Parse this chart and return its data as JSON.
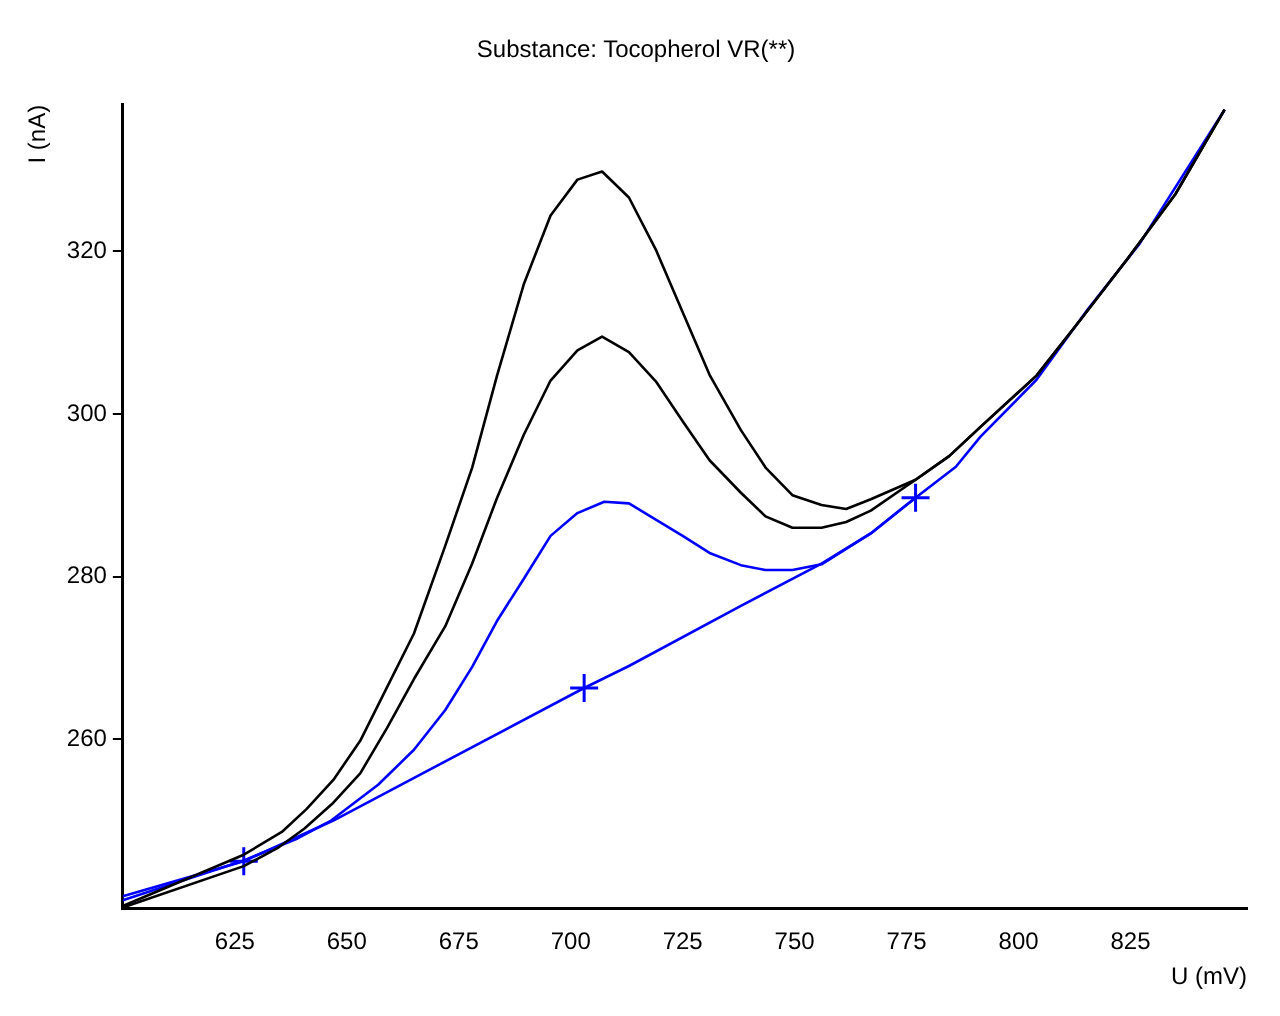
{
  "chart_data": {
    "type": "line",
    "title": "Substance: Tocopherol VR(**)",
    "xlabel": "U (mV)",
    "ylabel": "I (nA)",
    "xlim": [
      600,
      851
    ],
    "xticks": [
      625,
      650,
      675,
      700,
      725,
      750,
      775,
      800,
      825
    ],
    "ylim": [
      239.2,
      338
    ],
    "yticks": [
      260,
      280,
      300,
      320
    ],
    "grid": false,
    "legend": false,
    "marker": "none",
    "line_style": "solid",
    "series": [
      {
        "color": "#000000",
        "x": [
          600,
          627,
          635.5,
          641,
          647,
          653,
          659,
          665,
          672,
          678,
          683.5,
          689.5,
          695.5,
          701.5,
          707,
          713,
          719,
          725,
          731,
          738,
          743.5,
          749.5,
          756,
          761.5,
          767,
          777,
          784.5,
          791.5,
          804,
          814,
          824.5,
          835,
          846
        ],
        "values": [
          239.5,
          245.8,
          248.6,
          251.4,
          255,
          259.8,
          266.4,
          273,
          283.8,
          293.4,
          304.6,
          315.9,
          324.4,
          328.8,
          329.8,
          326.6,
          320.2,
          312.5,
          304.8,
          298,
          293.4,
          290,
          288.8,
          288.3,
          289.5,
          291.9,
          294.8,
          298.4,
          304.7,
          311.7,
          319.2,
          327,
          337.4
        ]
      },
      {
        "color": "#000000",
        "x": [
          600,
          627,
          634.5,
          640.5,
          647,
          653,
          659,
          665,
          672,
          678,
          683.5,
          689.5,
          695.5,
          701.5,
          707,
          713,
          719,
          725,
          731,
          738,
          743.5,
          749.5,
          756,
          761.5,
          767,
          777,
          784.5,
          791.5,
          804,
          814,
          824.5,
          835,
          846
        ],
        "values": [
          239.3,
          244.4,
          246.6,
          249,
          252.2,
          255.8,
          261.4,
          267.4,
          273.9,
          281.6,
          289.6,
          297.4,
          304.1,
          307.8,
          309.5,
          307.6,
          304,
          299.1,
          294.3,
          290.3,
          287.4,
          286,
          286,
          286.7,
          288.1,
          291.9,
          294.8,
          298.4,
          304.7,
          311.7,
          319.2,
          327,
          337.4
        ]
      },
      {
        "color": "#0000ff",
        "x": [
          600,
          627,
          639,
          646.5,
          657,
          665,
          672,
          678,
          683.5,
          689.5,
          695.5,
          701.5,
          707.5,
          713,
          719,
          725,
          731,
          738,
          743.5,
          749.5,
          756,
          767,
          777,
          786,
          791.5,
          804,
          815.5,
          827,
          846
        ],
        "values": [
          240.2,
          245.1,
          247.8,
          250,
          254.4,
          258.7,
          263.6,
          268.9,
          274.5,
          279.7,
          285,
          287.8,
          289.2,
          289,
          287,
          285,
          282.9,
          281.4,
          280.8,
          280.8,
          281.5,
          285.3,
          289.7,
          293.5,
          297.2,
          304.2,
          312.9,
          320.9,
          337.4
        ]
      },
      {
        "color": "#0000ff",
        "x": [
          600,
          627,
          647,
          703,
          713,
          738,
          756,
          767,
          777
        ],
        "values": [
          240.7,
          245,
          250,
          266.3,
          269,
          276.4,
          281.6,
          285.3,
          289.7
        ]
      },
      {
        "type": "scatter",
        "color": "#0000ff",
        "marker": "cross",
        "x": [
          627,
          703,
          777
        ],
        "values": [
          245,
          266.3,
          289.7
        ]
      }
    ]
  }
}
